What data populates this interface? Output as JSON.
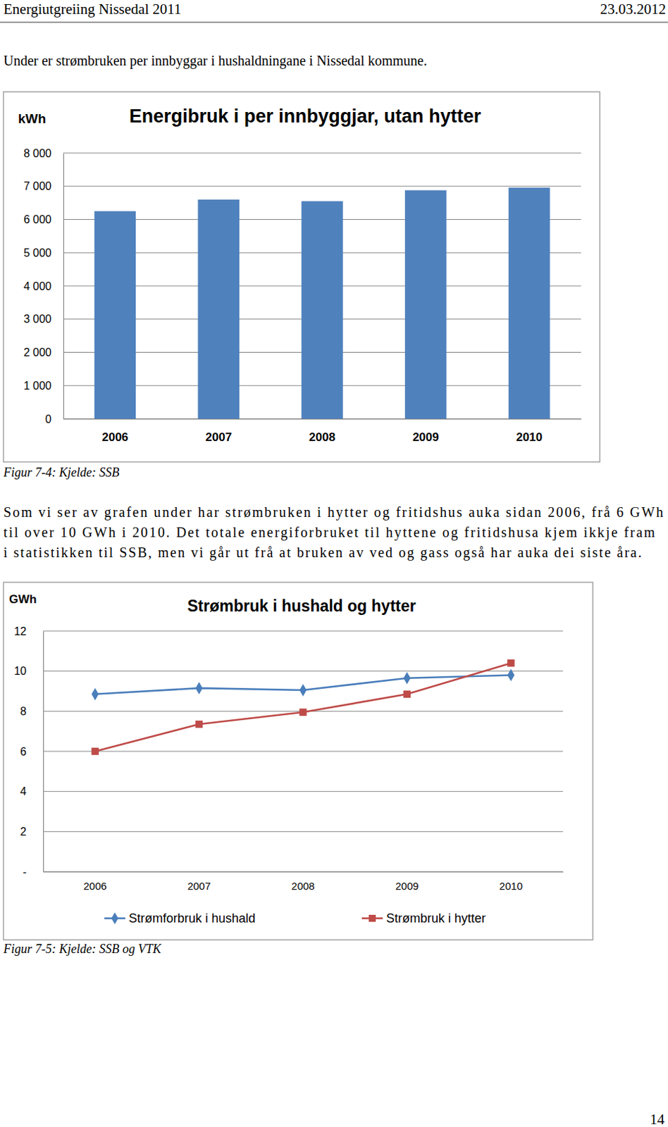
{
  "header": {
    "title": "Energiutgreiing Nissedal 2011",
    "date": "23.03.2012"
  },
  "intro": "Under er strømbruken per innbyggar i hushaldningane i Nissedal kommune.",
  "paragraph_lines": [
    "Som vi ser av grafen under har strømbruken i hytter og fritidshus auka sidan 2006, frå 6 GWh",
    "til over 10 GWh i 2010. Det totale energiforbruket til hyttene og fritidshusa kjem  ikkje fram",
    "i statistikken til SSB, men vi går ut frå at bruken av ved og gass også har auka dei siste åra."
  ],
  "figure_captions": [
    "Figur 7-4: Kjelde: SSB",
    "Figur 7-5: Kjelde: SSB og VTK"
  ],
  "page_number": 14,
  "chart_data": [
    {
      "type": "bar",
      "title": "Energibruk i per innbyggjar, utan hytter",
      "y_label": "kWh",
      "categories": [
        "2006",
        "2007",
        "2008",
        "2009",
        "2010"
      ],
      "values": [
        6250,
        6600,
        6550,
        6880,
        6960
      ],
      "color": "#4f81bd",
      "ylim": [
        0,
        8000
      ],
      "yticks": [
        0,
        {
          "value": 1000,
          "label": "1 000"
        },
        {
          "value": 2000,
          "label": "2 000"
        },
        {
          "value": 3000,
          "label": "3 000"
        },
        {
          "value": 4000,
          "label": "4 000"
        },
        {
          "value": 5000,
          "label": "5 000"
        },
        {
          "value": 6000,
          "label": "6 000"
        },
        {
          "value": 7000,
          "label": "7 000"
        },
        {
          "value": 8000,
          "label": "8 000"
        }
      ],
      "grid": true
    },
    {
      "type": "line",
      "title": "Strømbruk i hushald og hytter",
      "y_label": "GWh",
      "categories": [
        "2006",
        "2007",
        "2008",
        "2009",
        "2010"
      ],
      "series": [
        {
          "name": "Strømforbruk i hushald",
          "color": "#4a7ebb",
          "marker": "diamond",
          "values": [
            8.85,
            9.15,
            9.05,
            9.65,
            9.8
          ]
        },
        {
          "name": "Strømbruk i hytter",
          "color": "#be4b48",
          "marker": "square",
          "values": [
            6.0,
            7.35,
            7.95,
            8.85,
            10.4
          ]
        }
      ],
      "ylim": [
        0,
        12
      ],
      "yticks": [
        {
          "value": 0,
          "label": "-"
        },
        2,
        4,
        6,
        8,
        10,
        12
      ],
      "grid": true,
      "legend": "bottom"
    }
  ]
}
